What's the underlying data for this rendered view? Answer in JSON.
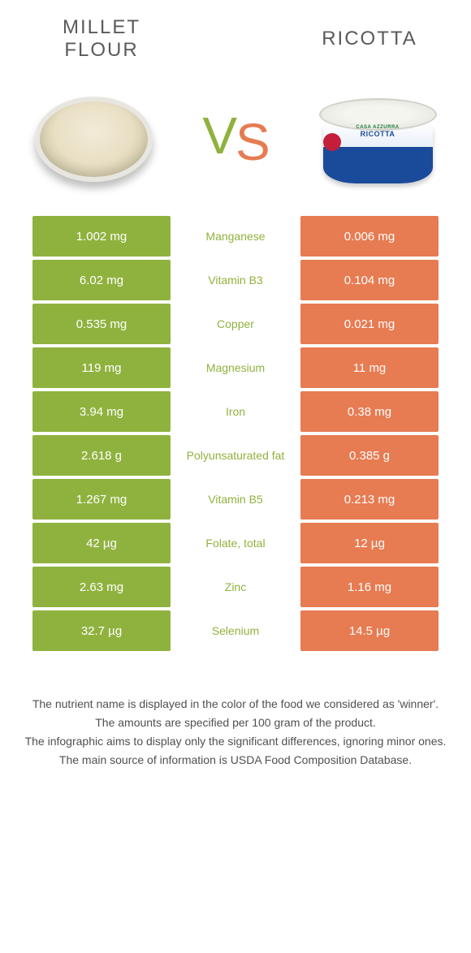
{
  "colors": {
    "left": "#8fb23e",
    "right": "#e77b51",
    "mid_bg": "#ffffff",
    "mid_text_default": "#8fb23e",
    "vs_v": "#8fb23e",
    "vs_s": "#e77b51",
    "title": "#5a5a5a"
  },
  "titles": {
    "left_line1": "MILLET",
    "left_line2": "FLOUR",
    "right": "RICOTTA"
  },
  "vs": {
    "v": "V",
    "s": "S"
  },
  "ricotta_label": {
    "brand": "CASA AZZURRA",
    "product": "RICOTTA"
  },
  "rows": [
    {
      "left": "1.002 mg",
      "name": "Manganese",
      "right": "0.006 mg",
      "winner": "left"
    },
    {
      "left": "6.02 mg",
      "name": "Vitamin B3",
      "right": "0.104 mg",
      "winner": "left"
    },
    {
      "left": "0.535 mg",
      "name": "Copper",
      "right": "0.021 mg",
      "winner": "left"
    },
    {
      "left": "119 mg",
      "name": "Magnesium",
      "right": "11 mg",
      "winner": "left"
    },
    {
      "left": "3.94 mg",
      "name": "Iron",
      "right": "0.38 mg",
      "winner": "left"
    },
    {
      "left": "2.618 g",
      "name": "Polyunsaturated fat",
      "right": "0.385 g",
      "winner": "left"
    },
    {
      "left": "1.267 mg",
      "name": "Vitamin B5",
      "right": "0.213 mg",
      "winner": "left"
    },
    {
      "left": "42 µg",
      "name": "Folate, total",
      "right": "12 µg",
      "winner": "left"
    },
    {
      "left": "2.63 mg",
      "name": "Zinc",
      "right": "1.16 mg",
      "winner": "left"
    },
    {
      "left": "32.7 µg",
      "name": "Selenium",
      "right": "14.5 µg",
      "winner": "left"
    }
  ],
  "footer": [
    "The nutrient name is displayed in the color of the food we considered as 'winner'.",
    "The amounts are specified per 100 gram of the product.",
    "The infographic aims to display only the significant differences, ignoring minor ones.",
    "The main source of information is USDA Food Composition Database."
  ]
}
